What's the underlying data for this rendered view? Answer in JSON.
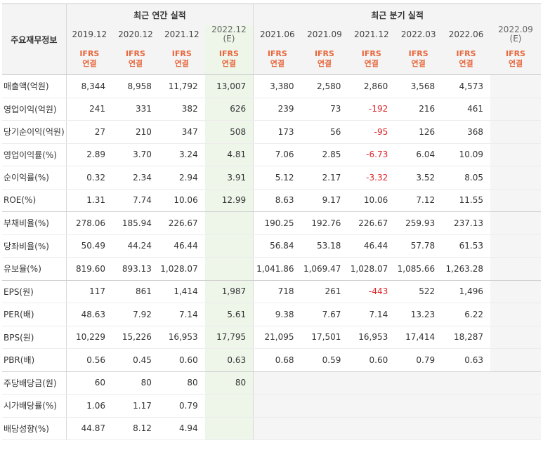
{
  "header": {
    "corner_label": "주요재무정보",
    "annual_label": "최근 연간 실적",
    "quarter_label": "최근 분기 실적",
    "annual_periods": [
      "2019.12",
      "2020.12",
      "2021.12",
      "2022.12"
    ],
    "annual_est_suffix": "(E)",
    "quarter_periods": [
      "2021.06",
      "2021.09",
      "2021.12",
      "2022.03",
      "2022.06",
      "2022.09"
    ],
    "quarter_est_suffix": "(E)",
    "ifrs_top": "IFRS",
    "ifrs_bottom": "연결"
  },
  "rows": [
    {
      "label": "매출액(억원)",
      "annual": [
        "8,344",
        "8,958",
        "11,792",
        "13,007"
      ],
      "quarter": [
        "3,380",
        "2,580",
        "2,860",
        "3,568",
        "4,573",
        ""
      ]
    },
    {
      "label": "영업이익(억원)",
      "annual": [
        "241",
        "331",
        "382",
        "626"
      ],
      "quarter": [
        "239",
        "73",
        "-192",
        "216",
        "461",
        ""
      ]
    },
    {
      "label": "당기순이익(억원)",
      "annual": [
        "27",
        "210",
        "347",
        "508"
      ],
      "quarter": [
        "173",
        "56",
        "-95",
        "126",
        "368",
        ""
      ]
    },
    {
      "label": "영업이익률(%)",
      "annual": [
        "2.89",
        "3.70",
        "3.24",
        "4.81"
      ],
      "quarter": [
        "7.06",
        "2.85",
        "-6.73",
        "6.04",
        "10.09",
        ""
      ]
    },
    {
      "label": "순이익률(%)",
      "annual": [
        "0.32",
        "2.34",
        "2.94",
        "3.91"
      ],
      "quarter": [
        "5.12",
        "2.17",
        "-3.32",
        "3.52",
        "8.05",
        ""
      ]
    },
    {
      "label": "ROE(%)",
      "annual": [
        "1.31",
        "7.74",
        "10.06",
        "12.99"
      ],
      "quarter": [
        "8.63",
        "9.17",
        "10.06",
        "7.12",
        "11.55",
        ""
      ]
    },
    {
      "label": "부채비율(%)",
      "annual": [
        "278.06",
        "185.94",
        "226.67",
        ""
      ],
      "quarter": [
        "190.25",
        "192.76",
        "226.67",
        "259.93",
        "237.13",
        ""
      ]
    },
    {
      "label": "당좌비율(%)",
      "annual": [
        "50.49",
        "44.24",
        "46.44",
        ""
      ],
      "quarter": [
        "56.84",
        "53.18",
        "46.44",
        "57.78",
        "61.53",
        ""
      ]
    },
    {
      "label": "유보율(%)",
      "annual": [
        "819.60",
        "893.13",
        "1,028.07",
        ""
      ],
      "quarter": [
        "1,041.86",
        "1,069.47",
        "1,028.07",
        "1,085.66",
        "1,263.28",
        ""
      ]
    },
    {
      "label": "EPS(원)",
      "annual": [
        "117",
        "861",
        "1,414",
        "1,987"
      ],
      "quarter": [
        "718",
        "261",
        "-443",
        "522",
        "1,496",
        ""
      ]
    },
    {
      "label": "PER(배)",
      "annual": [
        "48.63",
        "7.92",
        "7.14",
        "5.61"
      ],
      "quarter": [
        "9.38",
        "7.67",
        "7.14",
        "13.23",
        "6.22",
        ""
      ]
    },
    {
      "label": "BPS(원)",
      "annual": [
        "10,229",
        "15,226",
        "16,953",
        "17,795"
      ],
      "quarter": [
        "21,095",
        "17,501",
        "16,953",
        "17,414",
        "18,287",
        ""
      ]
    },
    {
      "label": "PBR(배)",
      "annual": [
        "0.56",
        "0.45",
        "0.60",
        "0.63"
      ],
      "quarter": [
        "0.68",
        "0.59",
        "0.60",
        "0.79",
        "0.63",
        ""
      ]
    },
    {
      "label": "주당배당금(원)",
      "annual": [
        "60",
        "80",
        "80",
        "80"
      ],
      "quarter": [
        "",
        "",
        "",
        "",
        "",
        ""
      ]
    },
    {
      "label": "시가배당률(%)",
      "annual": [
        "1.06",
        "1.17",
        "0.79",
        ""
      ],
      "quarter": [
        "",
        "",
        "",
        "",
        "",
        ""
      ]
    },
    {
      "label": "배당성향(%)",
      "annual": [
        "44.87",
        "8.12",
        "4.94",
        ""
      ],
      "quarter": [
        "",
        "",
        "",
        "",
        "",
        ""
      ]
    }
  ]
}
